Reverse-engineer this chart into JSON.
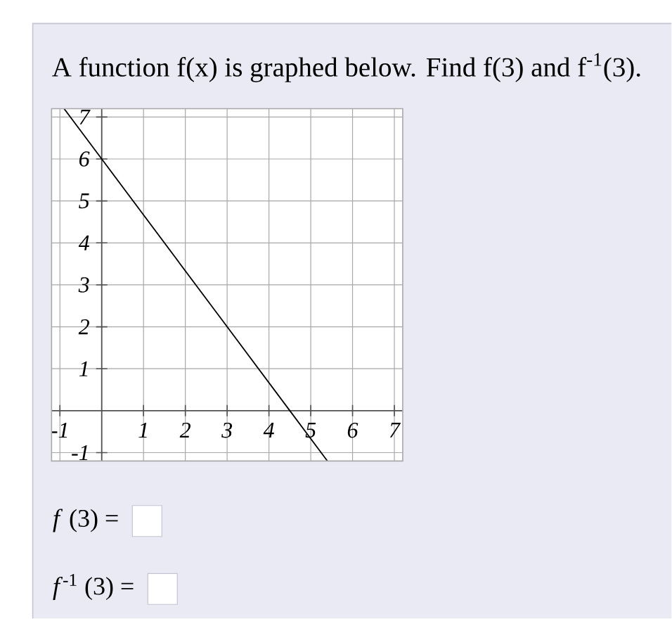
{
  "chart_data": {
    "type": "line",
    "title": "A function f(x) is graphed below. Find f(3) and f$^{-1}$(3).",
    "x": [
      -0.9,
      0,
      3,
      4.5,
      5.4
    ],
    "values": [
      7.2,
      6,
      2,
      0,
      -1.2
    ],
    "color": "#000000",
    "marker": "none",
    "xlim": [
      -1.2,
      7.2
    ],
    "ylim": [
      -1.2,
      7.2
    ],
    "xticks": [
      -1,
      {
        "value": 0,
        "label": null
      },
      1,
      2,
      3,
      4,
      5,
      6,
      7
    ],
    "yticks": [
      -1,
      {
        "value": 0,
        "label": null
      },
      1,
      2,
      3,
      4,
      5,
      6,
      7
    ],
    "grid": true,
    "annotations": [
      "*f* (3) =",
      "*f*$^{-1}$ (3) ="
    ]
  }
}
